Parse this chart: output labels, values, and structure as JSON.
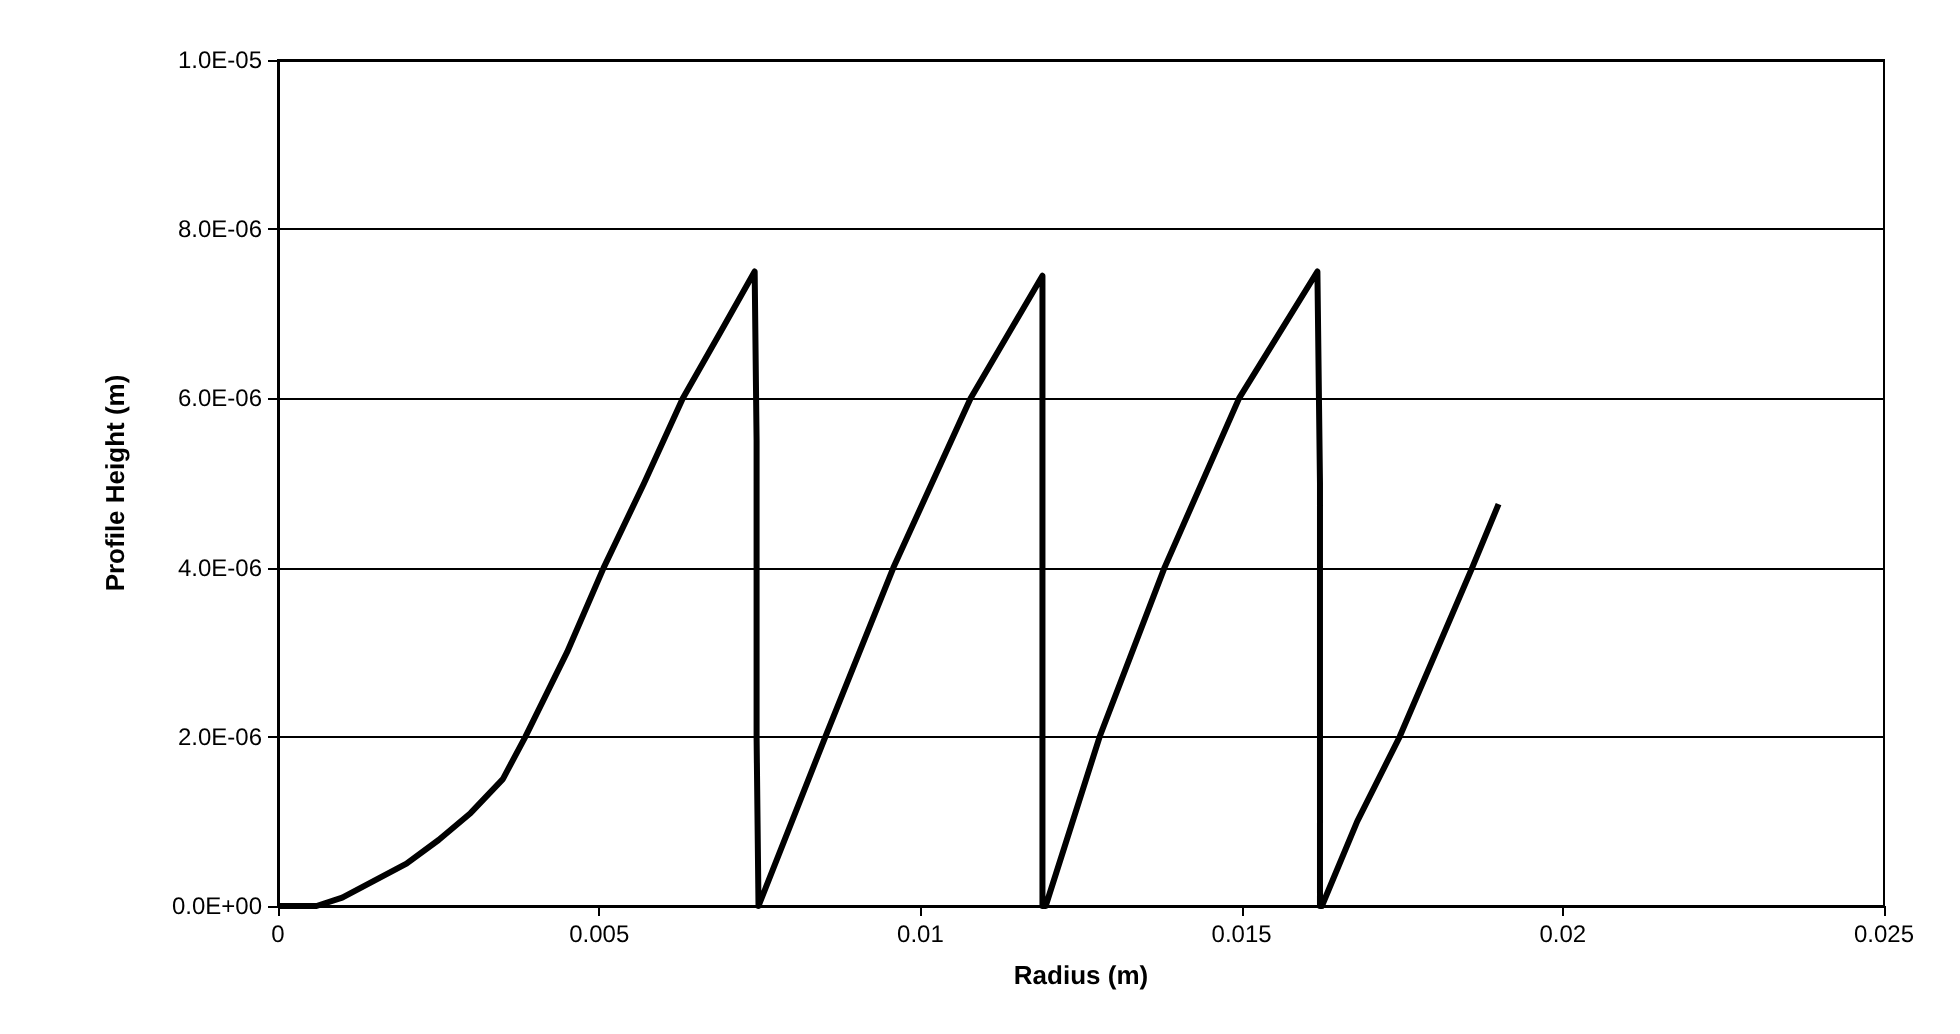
{
  "chart_data": {
    "type": "line",
    "xlabel": "Radius (m)",
    "ylabel": "Profile Height (m)",
    "xlim": [
      0,
      0.025
    ],
    "xticks": [
      0,
      0.005,
      0.01,
      0.015,
      0.02,
      0.025
    ],
    "ylim": [
      0,
      1e-05
    ],
    "yticks": [
      {
        "value": 0,
        "label": "0.0E+00"
      },
      {
        "value": 2e-06,
        "label": "2.0E-06"
      },
      {
        "value": 4e-06,
        "label": "4.0E-06"
      },
      {
        "value": 6e-06,
        "label": "6.0E-06"
      },
      {
        "value": 8e-06,
        "label": "8.0E-06"
      },
      {
        "value": 1e-05,
        "label": "1.0E-05"
      }
    ],
    "grid": "y",
    "marker": "none",
    "line_style": "solid",
    "series": [
      {
        "color": "#000000",
        "x": [
          0,
          0.0006,
          0.001,
          0.0015,
          0.002,
          0.0025,
          0.003,
          0.0035,
          0.00385,
          0.0045,
          0.00507,
          0.0057,
          0.0063,
          0.0069,
          0.00742,
          0.00745,
          0.00745,
          0.00748,
          0.0075,
          0.008,
          0.00852,
          0.00958,
          0.01078,
          0.0119,
          0.0119,
          0.0119,
          0.01195,
          0.01279,
          0.0138,
          0.01496,
          0.01618,
          0.01622,
          0.01622,
          0.01625,
          0.0168,
          0.01746,
          0.01859,
          0.019
        ],
        "values": [
          0,
          0,
          1e-07,
          3e-07,
          5e-07,
          7.8e-07,
          1.1e-06,
          1.5e-06,
          2e-06,
          3e-06,
          4e-06,
          5e-06,
          6e-06,
          6.8e-06,
          7.5e-06,
          5.5e-06,
          2e-06,
          0,
          0,
          1e-06,
          2e-06,
          4e-06,
          6e-06,
          7.45e-06,
          2.6e-06,
          0,
          0,
          2e-06,
          4e-06,
          6e-06,
          7.5e-06,
          5e-06,
          0,
          0,
          1e-06,
          2e-06,
          4e-06,
          4.75e-06
        ]
      }
    ]
  }
}
